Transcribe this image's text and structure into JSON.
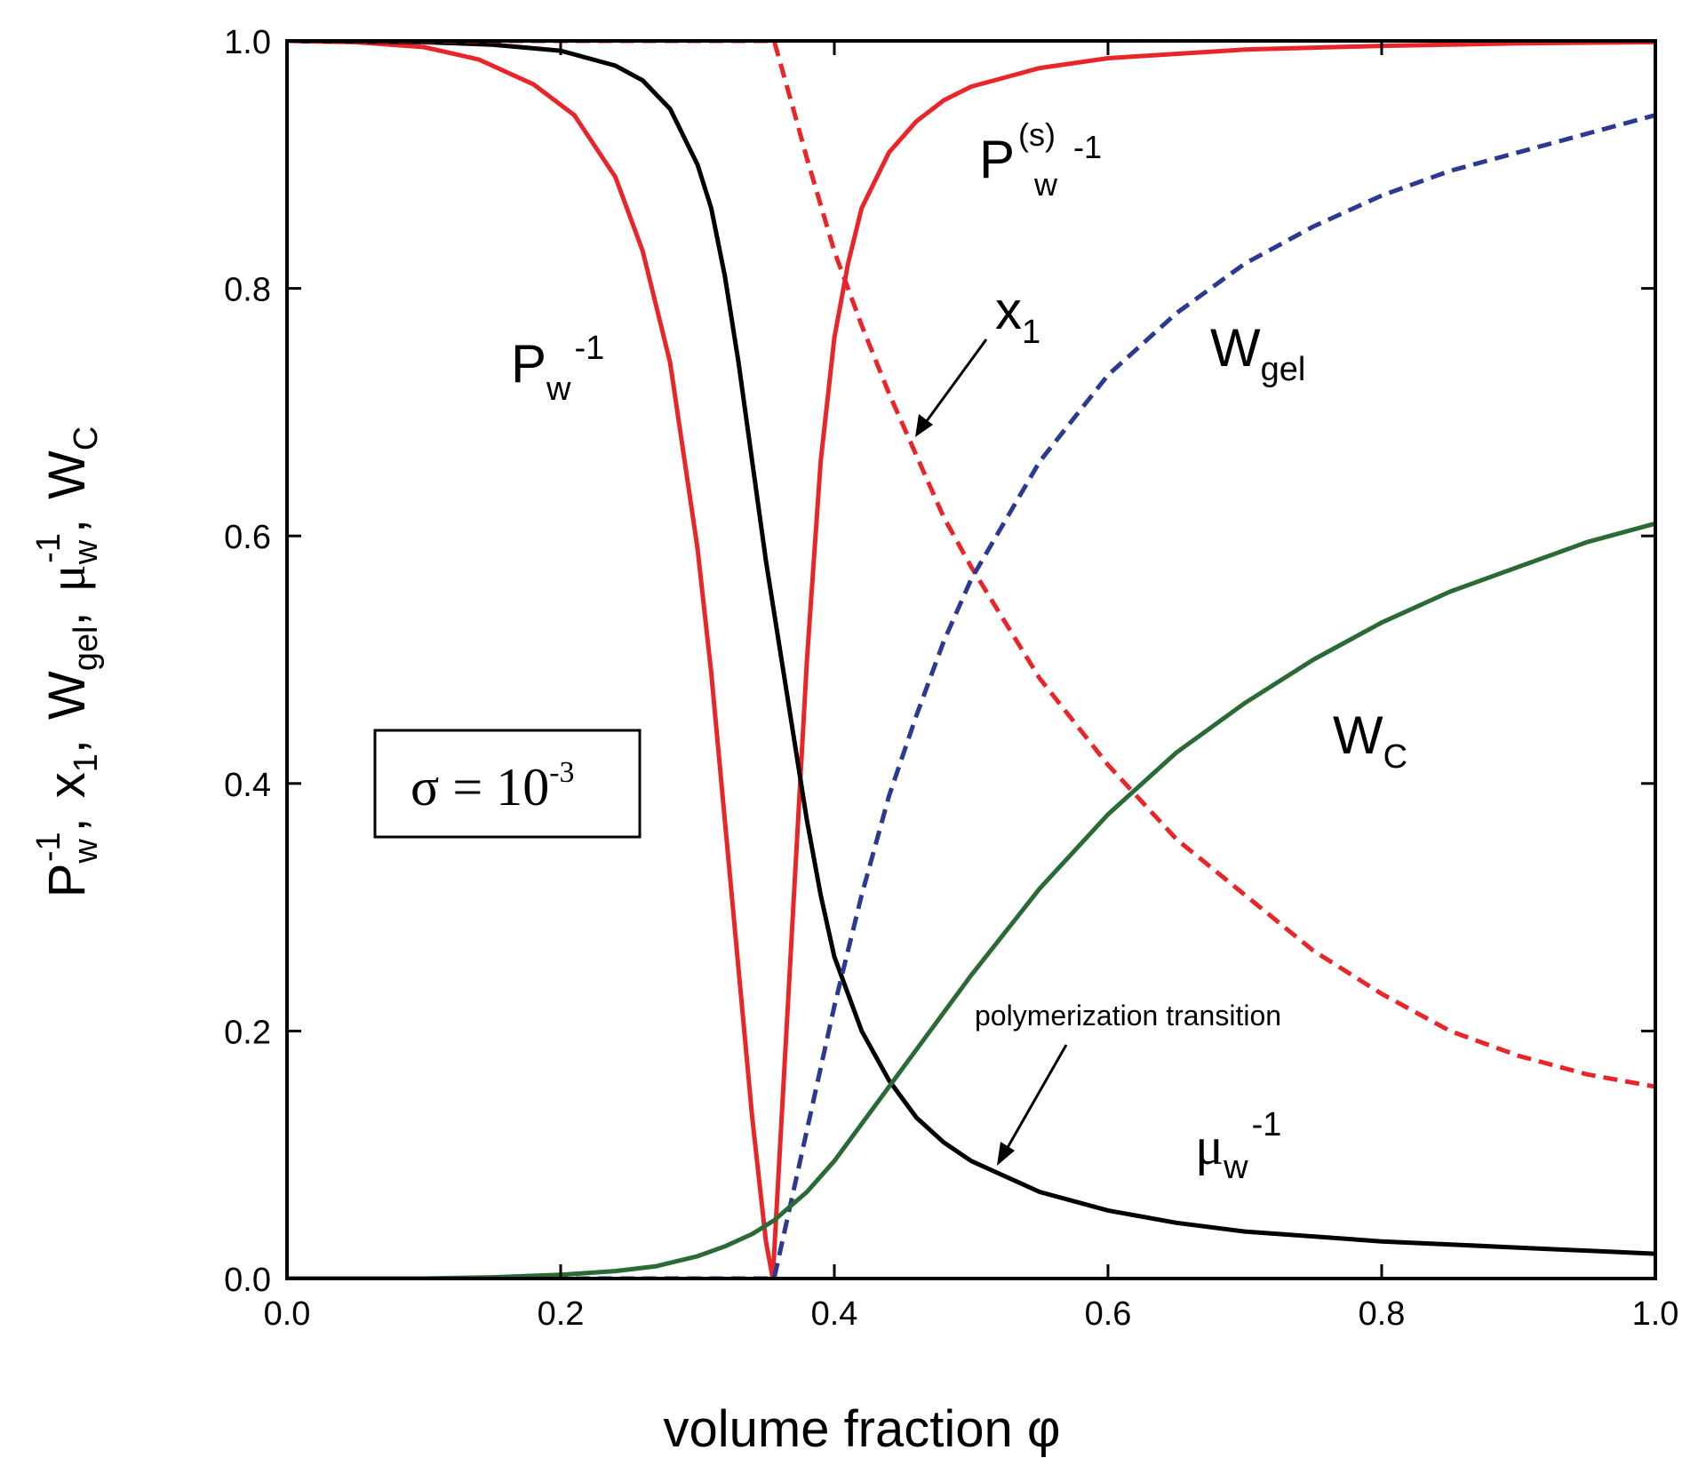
{
  "chart_data": {
    "type": "line",
    "xlabel": "volume fraction  φ",
    "ylabel": {
      "p_base": "P",
      "p_sub": "w",
      "p_sup": "-1",
      "x_base": "x",
      "x_sub": "1",
      "wgel_base": "W",
      "wgel_sub": "gel",
      "mu_base": "μ",
      "mu_sub": "w",
      "mu_sup": "-1",
      "wc_base": "W",
      "wc_sub": "C",
      "sep": ","
    },
    "xlim": [
      0.0,
      1.0
    ],
    "ylim": [
      0.0,
      1.0
    ],
    "xticks": [
      "0.0",
      "0.2",
      "0.4",
      "0.6",
      "0.8",
      "1.0"
    ],
    "yticks": [
      "0.0",
      "0.2",
      "0.4",
      "0.6",
      "0.8",
      "1.0"
    ],
    "legend_box": {
      "sigma": "σ",
      "eq": " = ",
      "base": "10",
      "exp": "-3"
    },
    "labels": {
      "pw": {
        "base": "P",
        "sub": "w",
        "sup": "-1"
      },
      "pws": {
        "base": "P",
        "sup1": "(s)",
        "sub": "w",
        "sup2": "-1"
      },
      "x1": {
        "base": "x",
        "sub": "1"
      },
      "wgel": {
        "base": "W",
        "sub": "gel"
      },
      "wc": {
        "base": "W",
        "sub": "C"
      },
      "muw": {
        "base": "μ",
        "sub": "w",
        "sup": "-1"
      },
      "transition": "polymerization transition"
    },
    "colors": {
      "red": "#e8262a",
      "black": "#000000",
      "blue": "#2b3990",
      "green": "#2a6a35"
    },
    "series": [
      {
        "style": "solid",
        "color": "red",
        "x": [
          0.0,
          0.05,
          0.1,
          0.14,
          0.18,
          0.21,
          0.24,
          0.26,
          0.28,
          0.3,
          0.31,
          0.32,
          0.33,
          0.34,
          0.35,
          0.355,
          0.36,
          0.37,
          0.38,
          0.39,
          0.4,
          0.41,
          0.42,
          0.44,
          0.46,
          0.48,
          0.5,
          0.55,
          0.6,
          0.7,
          0.8,
          0.9,
          1.0
        ],
        "y": [
          1.0,
          0.999,
          0.995,
          0.985,
          0.965,
          0.94,
          0.89,
          0.83,
          0.74,
          0.59,
          0.49,
          0.37,
          0.25,
          0.13,
          0.03,
          0.0,
          0.1,
          0.3,
          0.5,
          0.66,
          0.76,
          0.82,
          0.865,
          0.91,
          0.935,
          0.952,
          0.963,
          0.978,
          0.986,
          0.993,
          0.996,
          0.998,
          0.999
        ]
      },
      {
        "style": "solid",
        "color": "black",
        "x": [
          0.0,
          0.1,
          0.15,
          0.2,
          0.24,
          0.26,
          0.28,
          0.3,
          0.31,
          0.32,
          0.33,
          0.34,
          0.35,
          0.36,
          0.37,
          0.38,
          0.39,
          0.4,
          0.42,
          0.44,
          0.46,
          0.48,
          0.5,
          0.52,
          0.55,
          0.6,
          0.65,
          0.7,
          0.8,
          0.9,
          1.0
        ],
        "y": [
          1.0,
          0.999,
          0.997,
          0.992,
          0.98,
          0.968,
          0.945,
          0.9,
          0.865,
          0.81,
          0.74,
          0.66,
          0.58,
          0.51,
          0.44,
          0.37,
          0.31,
          0.26,
          0.2,
          0.16,
          0.13,
          0.11,
          0.095,
          0.085,
          0.07,
          0.055,
          0.045,
          0.038,
          0.03,
          0.025,
          0.02
        ]
      },
      {
        "style": "dashed",
        "color": "red",
        "x": [
          0.0,
          0.356,
          0.37,
          0.38,
          0.4,
          0.42,
          0.44,
          0.46,
          0.48,
          0.5,
          0.55,
          0.6,
          0.65,
          0.7,
          0.75,
          0.8,
          0.85,
          0.9,
          0.95,
          1.0
        ],
        "y": [
          1.0,
          1.0,
          0.945,
          0.905,
          0.83,
          0.77,
          0.715,
          0.665,
          0.615,
          0.575,
          0.485,
          0.415,
          0.355,
          0.31,
          0.265,
          0.23,
          0.2,
          0.18,
          0.165,
          0.155
        ]
      },
      {
        "style": "dashed",
        "color": "blue",
        "x": [
          0.0,
          0.356,
          0.37,
          0.38,
          0.4,
          0.42,
          0.44,
          0.46,
          0.48,
          0.5,
          0.55,
          0.6,
          0.65,
          0.7,
          0.75,
          0.8,
          0.85,
          0.9,
          0.95,
          1.0
        ],
        "y": [
          0.0,
          0.0,
          0.07,
          0.12,
          0.22,
          0.31,
          0.39,
          0.455,
          0.515,
          0.565,
          0.66,
          0.73,
          0.78,
          0.82,
          0.85,
          0.875,
          0.895,
          0.91,
          0.925,
          0.94
        ]
      },
      {
        "style": "solid",
        "color": "green",
        "x": [
          0.0,
          0.1,
          0.15,
          0.2,
          0.24,
          0.27,
          0.3,
          0.32,
          0.34,
          0.356,
          0.38,
          0.4,
          0.42,
          0.45,
          0.5,
          0.55,
          0.6,
          0.65,
          0.7,
          0.75,
          0.8,
          0.85,
          0.9,
          0.95,
          1.0
        ],
        "y": [
          0.0,
          0.0,
          0.001,
          0.003,
          0.006,
          0.01,
          0.018,
          0.026,
          0.036,
          0.047,
          0.07,
          0.095,
          0.125,
          0.17,
          0.245,
          0.315,
          0.375,
          0.425,
          0.465,
          0.5,
          0.53,
          0.555,
          0.575,
          0.595,
          0.61
        ]
      }
    ]
  }
}
